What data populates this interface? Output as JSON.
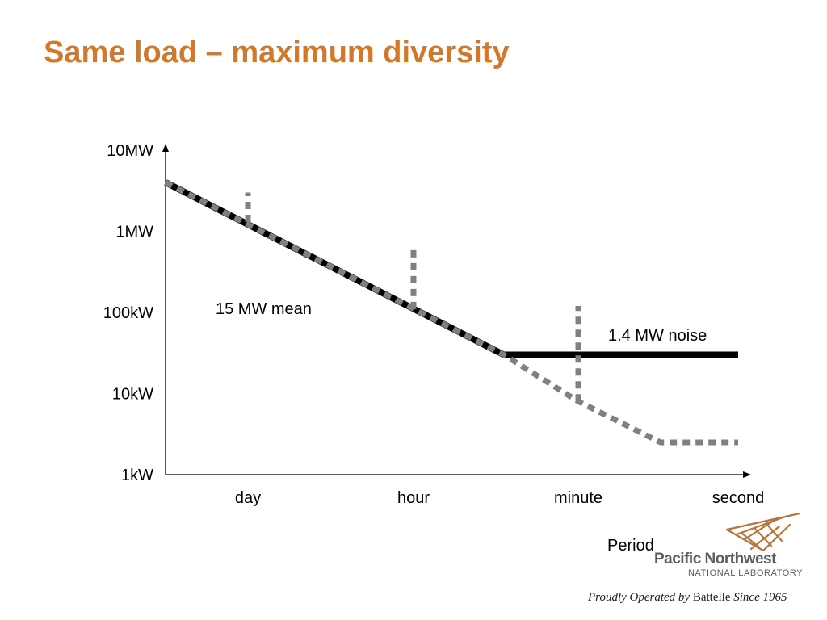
{
  "slide": {
    "title": "Same load – maximum diversity"
  },
  "chart_data": {
    "type": "line",
    "title": "",
    "xlabel": "Period",
    "ylabel": "",
    "y_scale": "log",
    "y_ticks": [
      "1kW",
      "10kW",
      "100kW",
      "1MW",
      "10MW"
    ],
    "y_tick_values": [
      1,
      10,
      100,
      1000,
      10000
    ],
    "x_ticks": [
      "day",
      "hour",
      "minute",
      "second"
    ],
    "ylim": [
      1,
      10000
    ],
    "grid": false,
    "annotations": [
      "15 MW mean",
      "1.4 MW noise"
    ],
    "series": [
      {
        "style": "solid-black",
        "points": [
          {
            "x": "start",
            "y": 4000
          },
          {
            "x": "hour-minute midpoint",
            "y": 30
          },
          {
            "x": "second",
            "y": 30
          }
        ]
      },
      {
        "style": "dotted-gray",
        "points": [
          {
            "x": "start",
            "y": 4000
          },
          {
            "x": "hour-minute midpoint",
            "y": 30
          },
          {
            "x": "minute",
            "y": 8
          },
          {
            "x": "minute-second midpoint",
            "y": 2.5
          },
          {
            "x": "second",
            "y": 2.5
          }
        ]
      }
    ],
    "spikes": [
      {
        "x": "day",
        "y_from": 1300,
        "y_to": 3000
      },
      {
        "x": "hour",
        "y_from": 110,
        "y_to": 600
      },
      {
        "x": "minute",
        "y_from": 8,
        "y_to": 120
      }
    ],
    "colors": {
      "solid": "#000000",
      "dotted": "#808080"
    }
  },
  "footer": {
    "lab_name": "Pacific Northwest",
    "lab_sub": "NATIONAL LABORATORY",
    "operated_prefix": "Proudly Operated by",
    "operated_org": "Battelle",
    "operated_suffix": "Since 1965",
    "logo_color": "#b5763a"
  }
}
